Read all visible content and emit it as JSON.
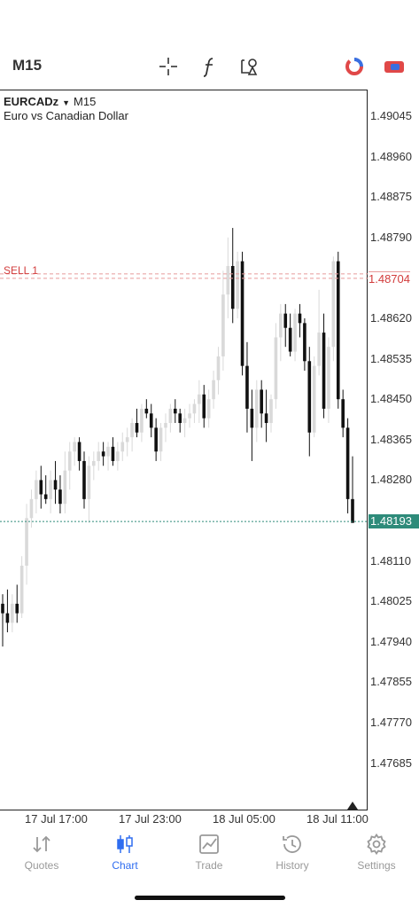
{
  "toolbar": {
    "timeframe": "M15",
    "icons": [
      "crosshair-icon",
      "indicator-f-icon",
      "objects-icon",
      "one-click-trading-icon",
      "account-icon"
    ]
  },
  "chart_header": {
    "symbol": "EURCADz",
    "timeframe": "M15",
    "description": "Euro vs Canadian Dollar"
  },
  "price_axis": [
    "1.49045",
    "1.48960",
    "1.48875",
    "1.48790",
    "1.48704",
    "1.48620",
    "1.48535",
    "1.48450",
    "1.48365",
    "1.48280",
    "1.48193",
    "1.48110",
    "1.48025",
    "1.47940",
    "1.47855",
    "1.47770",
    "1.47685"
  ],
  "current_price": "1.48193",
  "order_line": {
    "label": "SELL 1",
    "price": "1.48704"
  },
  "time_axis": [
    "17 Jul 17:00",
    "17 Jul 23:00",
    "18 Jul 05:00",
    "18 Jul 11:00"
  ],
  "colors": {
    "bull": "#d9d9d9",
    "bear": "#111111",
    "current_line": "#2e8b7a",
    "sell": "#d23c3c",
    "accent": "#2f6df0"
  },
  "chart_data": {
    "type": "candlestick",
    "symbol": "EURCADz",
    "timeframe": "M15",
    "ylim": [
      1.4764,
      1.4908
    ],
    "candles_ohlc": [
      [
        1.4802,
        1.4804,
        1.4793,
        1.48
      ],
      [
        1.48,
        1.4805,
        1.4796,
        1.4798
      ],
      [
        1.4798,
        1.4804,
        1.4796,
        1.4802
      ],
      [
        1.4802,
        1.4806,
        1.4798,
        1.48
      ],
      [
        1.48,
        1.4812,
        1.4799,
        1.481
      ],
      [
        1.481,
        1.4823,
        1.4806,
        1.482
      ],
      [
        1.482,
        1.4826,
        1.4818,
        1.4824
      ],
      [
        1.4824,
        1.483,
        1.4821,
        1.4828
      ],
      [
        1.4828,
        1.4831,
        1.4822,
        1.4825
      ],
      [
        1.4825,
        1.4829,
        1.4823,
        1.4824
      ],
      [
        1.4824,
        1.483,
        1.4821,
        1.4828
      ],
      [
        1.4828,
        1.4832,
        1.4823,
        1.4826
      ],
      [
        1.4826,
        1.4829,
        1.4821,
        1.4823
      ],
      [
        1.4823,
        1.4834,
        1.4821,
        1.483
      ],
      [
        1.483,
        1.4836,
        1.4826,
        1.4834
      ],
      [
        1.4834,
        1.4837,
        1.4831,
        1.4836
      ],
      [
        1.4836,
        1.4837,
        1.483,
        1.4832
      ],
      [
        1.4832,
        1.4834,
        1.4822,
        1.4824
      ],
      [
        1.4824,
        1.4833,
        1.4819,
        1.4831
      ],
      [
        1.4831,
        1.4834,
        1.4828,
        1.4832
      ],
      [
        1.4832,
        1.4836,
        1.483,
        1.4834
      ],
      [
        1.4834,
        1.4836,
        1.4831,
        1.4833
      ],
      [
        1.4833,
        1.4836,
        1.483,
        1.4835
      ],
      [
        1.4835,
        1.4837,
        1.4831,
        1.4832
      ],
      [
        1.4832,
        1.4836,
        1.483,
        1.4834
      ],
      [
        1.4834,
        1.4838,
        1.4832,
        1.4836
      ],
      [
        1.4836,
        1.4839,
        1.4833,
        1.4837
      ],
      [
        1.4837,
        1.4841,
        1.4834,
        1.484
      ],
      [
        1.484,
        1.4843,
        1.4837,
        1.4838
      ],
      [
        1.4838,
        1.4844,
        1.4836,
        1.4843
      ],
      [
        1.4843,
        1.4845,
        1.4841,
        1.4842
      ],
      [
        1.4842,
        1.4844,
        1.4837,
        1.4839
      ],
      [
        1.4839,
        1.4841,
        1.4832,
        1.4834
      ],
      [
        1.4834,
        1.484,
        1.4832,
        1.4839
      ],
      [
        1.4839,
        1.4842,
        1.4836,
        1.484
      ],
      [
        1.484,
        1.4844,
        1.4838,
        1.4843
      ],
      [
        1.4843,
        1.4845,
        1.484,
        1.4842
      ],
      [
        1.4842,
        1.4843,
        1.4838,
        1.484
      ],
      [
        1.484,
        1.4843,
        1.4837,
        1.4841
      ],
      [
        1.4841,
        1.4844,
        1.4839,
        1.4842
      ],
      [
        1.4842,
        1.4845,
        1.484,
        1.4844
      ],
      [
        1.4844,
        1.4849,
        1.484,
        1.4846
      ],
      [
        1.4846,
        1.4848,
        1.4839,
        1.4841
      ],
      [
        1.4841,
        1.4847,
        1.4839,
        1.4845
      ],
      [
        1.4845,
        1.4851,
        1.4843,
        1.4849
      ],
      [
        1.4849,
        1.4856,
        1.4846,
        1.4854
      ],
      [
        1.4854,
        1.4872,
        1.4851,
        1.4867
      ],
      [
        1.4867,
        1.4879,
        1.4862,
        1.4873
      ],
      [
        1.4873,
        1.4881,
        1.4861,
        1.4864
      ],
      [
        1.4864,
        1.4876,
        1.4862,
        1.4874
      ],
      [
        1.4874,
        1.4876,
        1.485,
        1.4852
      ],
      [
        1.4852,
        1.4857,
        1.4838,
        1.4843
      ],
      [
        1.4843,
        1.4847,
        1.4832,
        1.4839
      ],
      [
        1.4839,
        1.4849,
        1.4836,
        1.4847
      ],
      [
        1.4847,
        1.4849,
        1.4839,
        1.4842
      ],
      [
        1.4842,
        1.4847,
        1.4836,
        1.484
      ],
      [
        1.484,
        1.4846,
        1.4838,
        1.4845
      ],
      [
        1.4845,
        1.4861,
        1.4843,
        1.4858
      ],
      [
        1.4858,
        1.4865,
        1.4853,
        1.4863
      ],
      [
        1.4863,
        1.4865,
        1.4856,
        1.486
      ],
      [
        1.486,
        1.4863,
        1.4854,
        1.4855
      ],
      [
        1.4855,
        1.4864,
        1.4853,
        1.4863
      ],
      [
        1.4863,
        1.4865,
        1.4858,
        1.4861
      ],
      [
        1.4861,
        1.4862,
        1.4851,
        1.4853
      ],
      [
        1.4853,
        1.4856,
        1.4833,
        1.4838
      ],
      [
        1.4838,
        1.4854,
        1.4837,
        1.4852
      ],
      [
        1.4852,
        1.4868,
        1.485,
        1.4859
      ],
      [
        1.4859,
        1.4863,
        1.4841,
        1.4843
      ],
      [
        1.4843,
        1.4858,
        1.484,
        1.4856
      ],
      [
        1.4856,
        1.4875,
        1.4853,
        1.4874
      ],
      [
        1.4874,
        1.4876,
        1.4843,
        1.4845
      ],
      [
        1.4845,
        1.4847,
        1.4837,
        1.4839
      ],
      [
        1.4839,
        1.4841,
        1.4821,
        1.4824
      ],
      [
        1.4824,
        1.4833,
        1.4819,
        1.4819
      ]
    ]
  },
  "nav": [
    {
      "label": "Quotes",
      "icon": "quotes-icon"
    },
    {
      "label": "Chart",
      "icon": "chart-icon"
    },
    {
      "label": "Trade",
      "icon": "trade-icon"
    },
    {
      "label": "History",
      "icon": "history-icon"
    },
    {
      "label": "Settings",
      "icon": "settings-icon"
    }
  ]
}
